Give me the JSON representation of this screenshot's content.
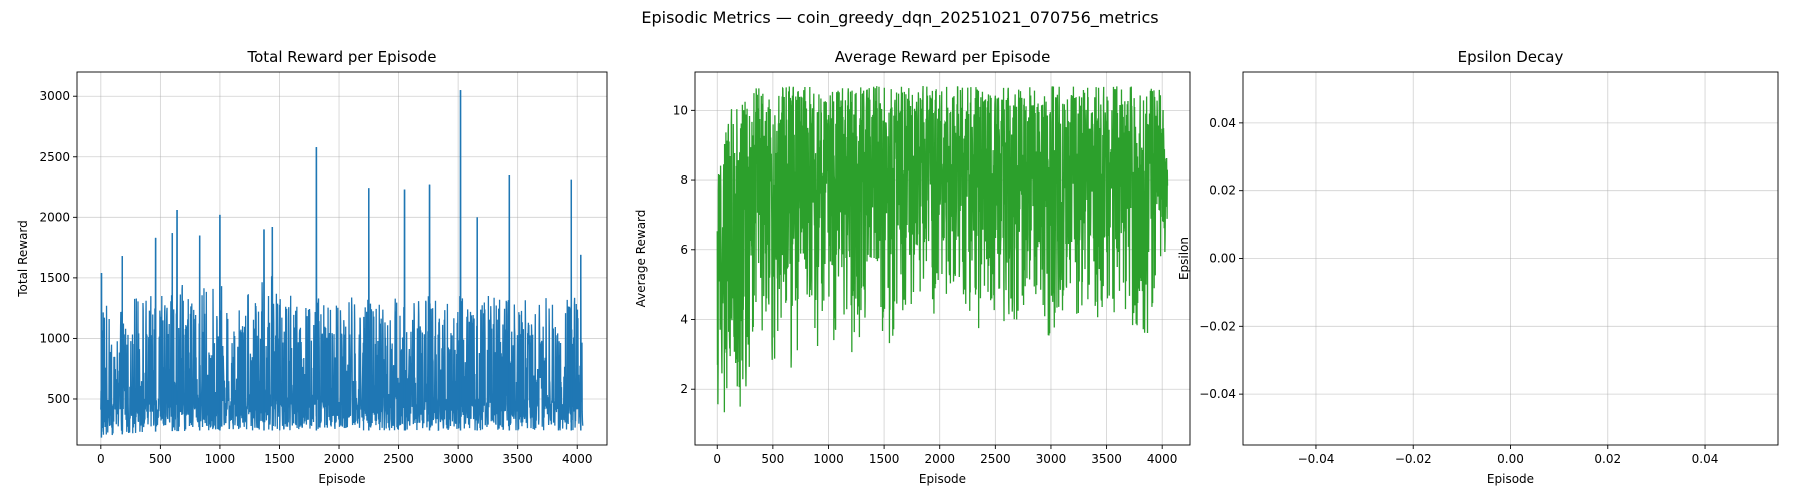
{
  "figure": {
    "title": "Episodic Metrics — coin_greedy_dqn_20251021_070756_metrics"
  },
  "chart_data": [
    {
      "type": "line",
      "title": "Total Reward per Episode",
      "xlabel": "Episode",
      "ylabel": "Total Reward",
      "xlim": [
        -200,
        4250
      ],
      "ylim": [
        120,
        3200
      ],
      "xticks": [
        0,
        500,
        1000,
        1500,
        2000,
        2500,
        3000,
        3500,
        4000
      ],
      "yticks": [
        500,
        1000,
        1500,
        2000,
        2500,
        3000
      ],
      "grid": true,
      "series": [
        {
          "color": "#1f77b4",
          "n_points": 4050,
          "envelope": {
            "x": [
              0,
              100,
              200,
              300,
              400,
              500,
              600,
              700,
              800,
              900,
              1000,
              1100,
              1200,
              1300,
              1400,
              1500,
              1600,
              1700,
              1800,
              1900,
              2000,
              2100,
              2200,
              2300,
              2400,
              2500,
              2600,
              2700,
              2800,
              2900,
              3000,
              3100,
              3200,
              3300,
              3400,
              3500,
              3600,
              3700,
              3800,
              3900,
              4000,
              4050
            ],
            "min": [
              180,
              200,
              210,
              220,
              230,
              230,
              235,
              235,
              240,
              240,
              240,
              240,
              240,
              240,
              240,
              240,
              240,
              240,
              240,
              240,
              240,
              240,
              240,
              240,
              240,
              240,
              240,
              240,
              240,
              240,
              240,
              240,
              240,
              240,
              240,
              240,
              240,
              240,
              240,
              240,
              240,
              240
            ],
            "typical_max": [
              1300,
              1250,
              1300,
              1350,
              1350,
              1350,
              1400,
              1450,
              1440,
              1440,
              1440,
              1450,
              1450,
              1550,
              1580,
              1400,
              1350,
              1350,
              1350,
              1350,
              1350,
              1350,
              1350,
              1350,
              1350,
              1350,
              1350,
              1350,
              1350,
              1350,
              1350,
              1350,
              1350,
              1350,
              1350,
              1350,
              1350,
              1350,
              1350,
              1350,
              1350,
              1050
            ]
          },
          "spikes": [
            {
              "x": 5,
              "y": 1540
            },
            {
              "x": 180,
              "y": 1680
            },
            {
              "x": 460,
              "y": 1830
            },
            {
              "x": 600,
              "y": 1870
            },
            {
              "x": 640,
              "y": 2060
            },
            {
              "x": 830,
              "y": 1850
            },
            {
              "x": 1000,
              "y": 2020
            },
            {
              "x": 1370,
              "y": 1900
            },
            {
              "x": 1440,
              "y": 1920
            },
            {
              "x": 1810,
              "y": 2580
            },
            {
              "x": 2250,
              "y": 2240
            },
            {
              "x": 2550,
              "y": 2230
            },
            {
              "x": 2760,
              "y": 2270
            },
            {
              "x": 3020,
              "y": 3050
            },
            {
              "x": 3160,
              "y": 2000
            },
            {
              "x": 3430,
              "y": 2350
            },
            {
              "x": 3950,
              "y": 2310
            },
            {
              "x": 4030,
              "y": 1690
            }
          ]
        }
      ]
    },
    {
      "type": "line",
      "title": "Average Reward per Episode",
      "xlabel": "Episode",
      "ylabel": "Average Reward",
      "xlim": [
        -200,
        4250
      ],
      "ylim": [
        0.4,
        11.1
      ],
      "xticks": [
        0,
        500,
        1000,
        1500,
        2000,
        2500,
        3000,
        3500,
        4000
      ],
      "yticks": [
        2,
        4,
        6,
        8,
        10
      ],
      "grid": true,
      "series": [
        {
          "color": "#2ca02c",
          "n_points": 4050,
          "envelope": {
            "x": [
              0,
              100,
              200,
              300,
              400,
              500,
              600,
              700,
              800,
              900,
              1000,
              1100,
              1200,
              1300,
              1400,
              1500,
              1600,
              1700,
              1800,
              1900,
              2000,
              2100,
              2200,
              2300,
              2400,
              2500,
              2600,
              2700,
              2800,
              2900,
              3000,
              3100,
              3200,
              3300,
              3400,
              3500,
              3600,
              3700,
              3800,
              3900,
              4000,
              4050
            ],
            "min": [
              0.8,
              0.7,
              1.1,
              1.8,
              2.4,
              2.2,
              1.2,
              2.4,
              3.3,
              2.6,
              2.8,
              3.0,
              3.0,
              3.5,
              3.4,
              3.0,
              3.6,
              3.8,
              3.8,
              4.0,
              4.2,
              4.2,
              4.0,
              3.9,
              3.2,
              2.5,
              3.8,
              3.6,
              3.5,
              4.0,
              2.1,
              3.7,
              3.7,
              3.5,
              4.0,
              3.4,
              3.8,
              3.8,
              1.9,
              3.8,
              4.4,
              6.8
            ],
            "typical_max": [
              8.0,
              9.8,
              10.7,
              10.6,
              10.7,
              10.3,
              10.7,
              10.7,
              10.7,
              10.7,
              10.5,
              10.7,
              10.7,
              10.7,
              10.7,
              10.7,
              10.7,
              10.7,
              10.7,
              10.7,
              10.7,
              10.7,
              10.7,
              10.7,
              10.7,
              10.7,
              10.7,
              10.7,
              10.7,
              10.7,
              10.7,
              10.7,
              10.7,
              10.7,
              10.7,
              10.7,
              10.7,
              10.7,
              10.7,
              10.7,
              10.7,
              8.8
            ]
          },
          "spikes": []
        }
      ]
    },
    {
      "type": "line",
      "title": "Epsilon Decay",
      "xlabel": "Episode",
      "ylabel": "Epsilon",
      "xlim": [
        -0.055,
        0.055
      ],
      "ylim": [
        -0.055,
        0.055
      ],
      "xticks": [
        -0.04,
        -0.02,
        0.0,
        0.02,
        0.04
      ],
      "yticks": [
        -0.04,
        -0.02,
        0.0,
        0.02,
        0.04
      ],
      "grid": true,
      "series": []
    }
  ]
}
